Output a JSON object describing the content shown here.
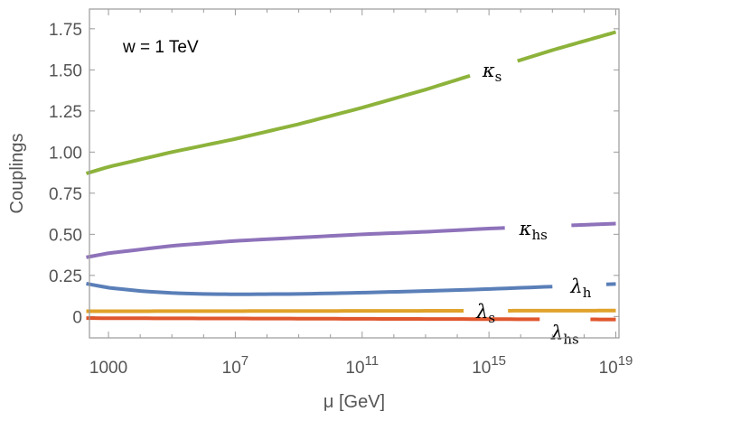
{
  "chart_data": {
    "type": "line",
    "title": "",
    "annotation": "w = 1 TeV",
    "xlabel": "μ [GeV]",
    "ylabel": "Couplings",
    "xscale": "log10",
    "xlim_log10": [
      2.4,
      19.1
    ],
    "ylim": [
      -0.13,
      1.87
    ],
    "x_ticks": [
      {
        "log10": 3,
        "base": "1000",
        "exp": ""
      },
      {
        "log10": 7,
        "base": "10",
        "exp": "7"
      },
      {
        "log10": 11,
        "base": "10",
        "exp": "11"
      },
      {
        "log10": 15,
        "base": "10",
        "exp": "15"
      },
      {
        "log10": 19,
        "base": "10",
        "exp": "19"
      }
    ],
    "y_ticks": [
      0,
      0.25,
      0.5,
      0.75,
      1.0,
      1.25,
      1.5,
      1.75
    ],
    "y_tick_labels": [
      "0",
      "0.25",
      "0.50",
      "0.75",
      "1.00",
      "1.25",
      "1.50",
      "1.75"
    ],
    "series": [
      {
        "name": "κs",
        "symbol": "κ",
        "sub": "s",
        "color": "#8db33b",
        "x_log10": [
          2.3,
          3,
          5,
          7,
          9,
          11,
          13,
          15,
          17,
          19
        ],
        "values": [
          0.87,
          0.91,
          1.0,
          1.08,
          1.17,
          1.27,
          1.38,
          1.5,
          1.62,
          1.73
        ]
      },
      {
        "name": "κhs",
        "symbol": "κ",
        "sub": "hs",
        "color": "#8e72ba",
        "x_log10": [
          2.3,
          3,
          5,
          7,
          9,
          11,
          13,
          15,
          17,
          19
        ],
        "values": [
          0.36,
          0.385,
          0.43,
          0.46,
          0.48,
          0.5,
          0.515,
          0.535,
          0.55,
          0.565
        ]
      },
      {
        "name": "λh",
        "symbol": "λ",
        "sub": "h",
        "color": "#5a7fb8",
        "x_log10": [
          2.3,
          3,
          4,
          5,
          6,
          7,
          9,
          11,
          13,
          15,
          17,
          19
        ],
        "values": [
          0.2,
          0.175,
          0.155,
          0.143,
          0.137,
          0.135,
          0.137,
          0.145,
          0.155,
          0.167,
          0.182,
          0.198
        ]
      },
      {
        "name": "λs",
        "symbol": "λ",
        "sub": "s",
        "color": "#e0a22a",
        "x_log10": [
          2.3,
          7,
          11,
          15,
          19
        ],
        "values": [
          0.032,
          0.033,
          0.034,
          0.035,
          0.036
        ]
      },
      {
        "name": "λhs",
        "symbol": "λ",
        "sub": "hs",
        "color": "#e0562d",
        "x_log10": [
          2.3,
          7,
          11,
          15,
          19
        ],
        "values": [
          -0.01,
          -0.012,
          -0.014,
          -0.016,
          -0.018
        ]
      }
    ]
  }
}
